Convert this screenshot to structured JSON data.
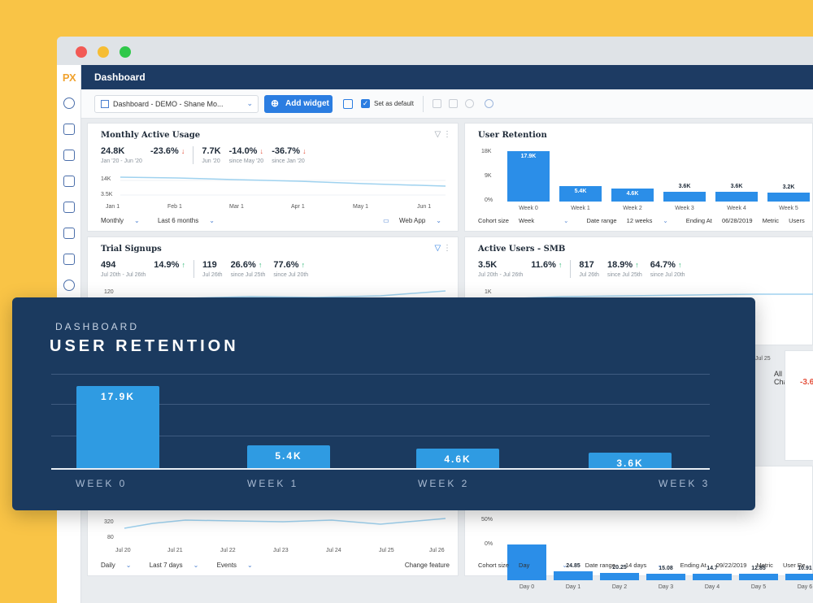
{
  "app": {
    "logo": "PX",
    "header_title": "Dashboard"
  },
  "toolbar": {
    "dashboard_select": "Dashboard - DEMO - Shane Mo...",
    "add_widget_label": "Add widget",
    "set_default_label": "Set as default"
  },
  "cards": {
    "mau": {
      "title": "Monthly Active Usage",
      "stats": [
        {
          "value": "24.8K",
          "sub": "Jan '20 - Jun '20"
        },
        {
          "value": "-23.6%",
          "dir": "down",
          "sub": ""
        },
        {
          "value": "7.7K",
          "sub": "Jun '20"
        },
        {
          "value": "-14.0%",
          "dir": "down",
          "sub": "since May '20"
        },
        {
          "value": "-36.7%",
          "dir": "down",
          "sub": "since Jan '20"
        }
      ],
      "y_ticks": [
        "14K",
        "3.5K"
      ],
      "x_ticks": [
        "Jan 1",
        "Feb 1",
        "Mar 1",
        "Apr 1",
        "May 1",
        "Jun 1"
      ],
      "footer": {
        "interval": "Monthly",
        "range": "Last 6 months",
        "channel": "Web App"
      }
    },
    "retention": {
      "title": "User Retention",
      "y_ticks": [
        "18K",
        "9K",
        "0%"
      ],
      "footer": {
        "cohort_label": "Cohort size",
        "cohort": "Week",
        "range_label": "Date range",
        "range": "12 weeks",
        "ending_label": "Ending At",
        "ending": "06/28/2019",
        "metric_label": "Metric",
        "metric": "Users"
      }
    },
    "trial": {
      "title": "Trial Signups",
      "stats": [
        {
          "value": "494",
          "sub": "Jul 20th - Jul 26th"
        },
        {
          "value": "14.9%",
          "dir": "up",
          "sub": ""
        },
        {
          "value": "119",
          "sub": "Jul 26th"
        },
        {
          "value": "26.6%",
          "dir": "up",
          "sub": "since Jul 25th"
        },
        {
          "value": "77.6%",
          "dir": "up",
          "sub": "since Jul 20th"
        }
      ],
      "y_tick": "120"
    },
    "smb": {
      "title": "Active Users - SMB",
      "stats": [
        {
          "value": "3.5K",
          "sub": "Jul 20th - Jul 26th"
        },
        {
          "value": "11.6%",
          "dir": "up",
          "sub": ""
        },
        {
          "value": "817",
          "sub": "Jul 26th"
        },
        {
          "value": "18.9%",
          "dir": "up",
          "sub": "since Jul 25th"
        },
        {
          "value": "64.7%",
          "dir": "up",
          "sub": "since Jul 20th"
        }
      ],
      "y_tick": "1K",
      "x_tick": "Jul 25",
      "channel": "All Channels"
    },
    "partial": {
      "value": "-3.6"
    },
    "events": {
      "y_ticks": [
        "320",
        "80"
      ],
      "x_ticks": [
        "Jul 20",
        "Jul 21",
        "Jul 22",
        "Jul 23",
        "Jul 24",
        "Jul 25",
        "Jul 26"
      ],
      "footer": {
        "interval": "Daily",
        "range": "Last 7 days",
        "type": "Events",
        "action": "Change feature"
      }
    },
    "daily_retention": {
      "y_ticks": [
        "50%",
        "0%"
      ],
      "footer": {
        "cohort_label": "Cohort size",
        "cohort": "Day",
        "range_label": "Date range",
        "range": "14 days",
        "ending_label": "Ending At",
        "ending": "09/22/2019",
        "metric_label": "Metric",
        "metric": "User Re"
      }
    }
  },
  "retention_mini": {
    "categories": [
      "Week 0",
      "Week 1",
      "Week 2",
      "Week 3",
      "Week 4",
      "Week 5"
    ],
    "values": [
      17.9,
      5.4,
      4.6,
      3.6,
      3.6,
      3.2
    ],
    "labels": [
      "17.9K",
      "5.4K",
      "4.6K",
      "3.6K",
      "3.6K",
      "3.2K"
    ],
    "ymax": 18
  },
  "daily_mini": {
    "categories": [
      "Day 0",
      "Day 1",
      "Day 2",
      "Day 3",
      "Day 4",
      "Day 5",
      "Day 6"
    ],
    "values": [
      100,
      24.85,
      20.25,
      15.08,
      14.7,
      12.85,
      10.91
    ],
    "labels": [
      "",
      "24.85",
      "20.25",
      "15.08",
      "14.7",
      "12.85",
      "10.91"
    ],
    "ymax": 100
  },
  "overlay": {
    "subtitle": "DASHBOARD",
    "title": "USER RETENTION"
  },
  "chart_data": {
    "type": "bar",
    "title": "USER RETENTION",
    "categories": [
      "WEEK 0",
      "WEEK 1",
      "WEEK 2",
      "WEEK 3"
    ],
    "values": [
      17.9,
      5.4,
      4.6,
      3.6
    ],
    "labels": [
      "17.9K",
      "5.4K",
      "4.6K",
      "3.6K"
    ],
    "ylim": [
      0,
      22
    ],
    "grid": true
  },
  "colors": {
    "brand_navy": "#1d3b63",
    "accent_blue": "#2b7de1",
    "bar_blue": "#2b8ee8",
    "up_green": "#2bb673",
    "down_red": "#e5533f",
    "background_yellow": "#f9c446"
  }
}
